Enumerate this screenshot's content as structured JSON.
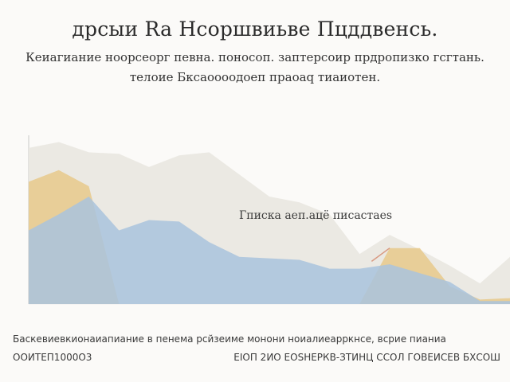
{
  "chart_data": {
    "type": "area",
    "title": "дрсыи Ra Нсоршвиьве Пцддвенсь.",
    "subtitle_lines": [
      "Кеиагиание ноорсеорг певна. поносоп. заптерсоир прдропизко гсгтань.",
      "телоие Бксаоооодоеп праоаq тиаиотен."
    ],
    "annotation": "Гписка аеп.ацё писастаеs",
    "footer_lines": [
      "Баскевиевкионаиапиание в пенема рсйзеиме монони ноиалиеарркнсе, всрие пианиа",
      "ООИТЕП1000О3",
      "ЕІОП 2ИО ЕОЅНЕРКВ-ЗТИНЦ ССОЛ ГОВЕИСЕВ БХСОШ"
    ],
    "x_range": [
      0,
      16
    ],
    "y_range": [
      0,
      12
    ],
    "x": [
      0,
      1,
      2,
      3,
      4,
      5,
      6,
      7,
      8,
      9,
      10,
      11,
      12,
      13,
      14,
      15,
      16
    ],
    "series": [
      {
        "name": "",
        "color": "#e9e7e0",
        "values": [
          10.6,
          11.0,
          10.3,
          10.2,
          9.3,
          10.1,
          10.3,
          8.8,
          7.3,
          6.9,
          6.1,
          3.4,
          4.7,
          3.7,
          2.6,
          1.4,
          3.2
        ]
      },
      {
        "name": "",
        "color": "#e7c98b",
        "values": [
          8.3,
          9.1,
          8.0,
          0,
          0,
          0,
          0,
          0,
          0,
          0,
          0,
          0,
          3.8,
          3.8,
          1.2,
          0.3,
          0.4
        ]
      },
      {
        "name": "",
        "color": "#a9c3dd",
        "values": [
          5.0,
          6.1,
          7.3,
          5.0,
          5.7,
          5.6,
          4.2,
          3.2,
          3.1,
          3.0,
          2.4,
          2.4,
          2.7,
          2.1,
          1.5,
          0.2,
          0.2
        ]
      }
    ]
  }
}
